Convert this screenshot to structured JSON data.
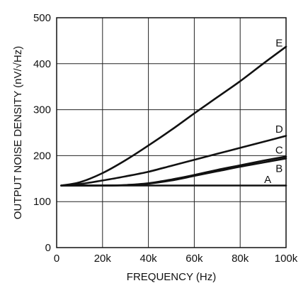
{
  "chart_data": {
    "type": "line",
    "title": "",
    "xlabel": "FREQUENCY (Hz)",
    "ylabel": "OUTPUT NOISE DENSITY (nV/√Hz)",
    "xlim": [
      0,
      100000
    ],
    "ylim": [
      0,
      500
    ],
    "xticks": [
      0,
      20000,
      40000,
      60000,
      80000,
      100000
    ],
    "xtick_labels": [
      "0",
      "20k",
      "40k",
      "60k",
      "80k",
      "100k"
    ],
    "yticks": [
      0,
      100,
      200,
      300,
      400,
      500
    ],
    "ytick_labels": [
      "0",
      "100",
      "200",
      "300",
      "400",
      "500"
    ],
    "grid": true,
    "legend": "none",
    "series": [
      {
        "name": "A",
        "x": [
          2000,
          10000,
          20000,
          40000,
          60000,
          80000,
          100000
        ],
        "y": [
          135,
          135,
          135,
          135,
          135,
          135,
          135
        ]
      },
      {
        "name": "B",
        "x": [
          2000,
          10000,
          20000,
          30000,
          40000,
          50000,
          60000,
          70000,
          80000,
          90000,
          100000
        ],
        "y": [
          135,
          135,
          135,
          136,
          139,
          146,
          156,
          166,
          176,
          185,
          194
        ]
      },
      {
        "name": "C",
        "x": [
          2000,
          10000,
          20000,
          30000,
          40000,
          50000,
          60000,
          70000,
          80000,
          90000,
          100000
        ],
        "y": [
          135,
          135,
          135,
          136,
          140,
          148,
          158,
          169,
          179,
          189,
          198
        ]
      },
      {
        "name": "D",
        "x": [
          2000,
          10000,
          20000,
          30000,
          40000,
          50000,
          60000,
          70000,
          80000,
          90000,
          100000
        ],
        "y": [
          135,
          138,
          146,
          155,
          165,
          178,
          191,
          204,
          217,
          230,
          243
        ]
      },
      {
        "name": "E",
        "x": [
          2000,
          10000,
          20000,
          30000,
          40000,
          50000,
          60000,
          70000,
          80000,
          90000,
          100000
        ],
        "y": [
          135,
          142,
          162,
          190,
          222,
          256,
          292,
          327,
          362,
          400,
          437
        ]
      }
    ],
    "curve_labels": [
      {
        "series": "A",
        "text": "A",
        "x": 92000,
        "y": 148
      },
      {
        "series": "B",
        "text": "B",
        "x": 97000,
        "y": 172
      },
      {
        "series": "C",
        "text": "C",
        "x": 97000,
        "y": 212
      },
      {
        "series": "D",
        "text": "D",
        "x": 97000,
        "y": 258
      },
      {
        "series": "E",
        "text": "E",
        "x": 97000,
        "y": 445
      }
    ],
    "colors": {
      "line": "#111111",
      "grid": "#222222",
      "background": "#ffffff"
    }
  }
}
